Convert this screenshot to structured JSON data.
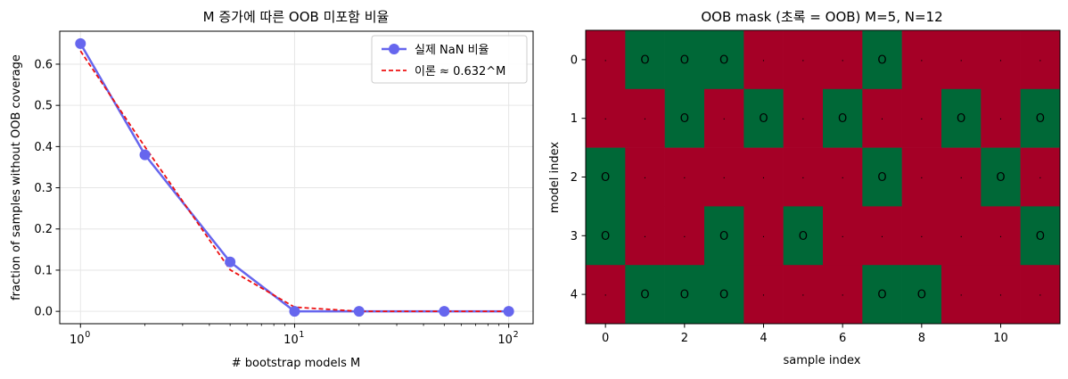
{
  "chart_data": [
    {
      "type": "line",
      "title": "M 증가에 따른 OOB 미포함 비율",
      "xlabel": "# bootstrap models M",
      "ylabel": "fraction of samples without OOB coverage",
      "xscale": "log",
      "xlim": [
        0.8,
        130
      ],
      "ylim": [
        -0.03,
        0.68
      ],
      "x_tick_labels": [
        {
          "base": "10",
          "exp": "0",
          "value": 1
        },
        {
          "base": "10",
          "exp": "1",
          "value": 10
        },
        {
          "base": "10",
          "exp": "2",
          "value": 100
        }
      ],
      "y_ticks": [
        0.0,
        0.1,
        0.2,
        0.3,
        0.4,
        0.5,
        0.6
      ],
      "y_tick_labels": [
        "0.0",
        "0.1",
        "0.2",
        "0.3",
        "0.4",
        "0.5",
        "0.6"
      ],
      "grid": true,
      "legend_position": "top-right",
      "series": [
        {
          "name": "실제 NaN 비율",
          "color": "#6666ee",
          "style": "solid-marker",
          "x": [
            1,
            2,
            5,
            10,
            20,
            50,
            100
          ],
          "y": [
            0.65,
            0.38,
            0.12,
            0.0,
            0.0,
            0.0,
            0.0
          ]
        },
        {
          "name": "이론 ≈ 0.632^M",
          "color": "#ee1111",
          "style": "dashed",
          "x": [
            1,
            2,
            5,
            10,
            20,
            50,
            100
          ],
          "y": [
            0.632,
            0.3994,
            0.1008,
            0.0102,
            0.0001,
            0.0,
            0.0
          ]
        }
      ]
    },
    {
      "type": "heatmap",
      "title": "OOB mask (초록 = OOB)   M=5, N=12",
      "xlabel": "sample index",
      "ylabel": "model index",
      "x_ticks": [
        0,
        2,
        4,
        6,
        8,
        10
      ],
      "x_tick_labels": [
        "0",
        "2",
        "4",
        "6",
        "8",
        "10"
      ],
      "y_ticks": [
        0,
        1,
        2,
        3,
        4
      ],
      "y_tick_labels": [
        "0",
        "1",
        "2",
        "3",
        "4"
      ],
      "colors": {
        "oob": "#006837",
        "in_bag": "#a50026"
      },
      "cell_labels": {
        "oob": "O",
        "in_bag": "·"
      },
      "mask": [
        [
          0,
          1,
          1,
          1,
          0,
          0,
          0,
          1,
          0,
          0,
          0,
          0
        ],
        [
          0,
          0,
          1,
          0,
          1,
          0,
          1,
          0,
          0,
          1,
          0,
          1
        ],
        [
          1,
          0,
          0,
          0,
          0,
          0,
          0,
          1,
          0,
          0,
          1,
          0
        ],
        [
          1,
          0,
          0,
          1,
          0,
          1,
          0,
          0,
          0,
          0,
          0,
          1
        ],
        [
          0,
          1,
          1,
          1,
          0,
          0,
          0,
          1,
          1,
          0,
          0,
          0
        ]
      ]
    }
  ]
}
